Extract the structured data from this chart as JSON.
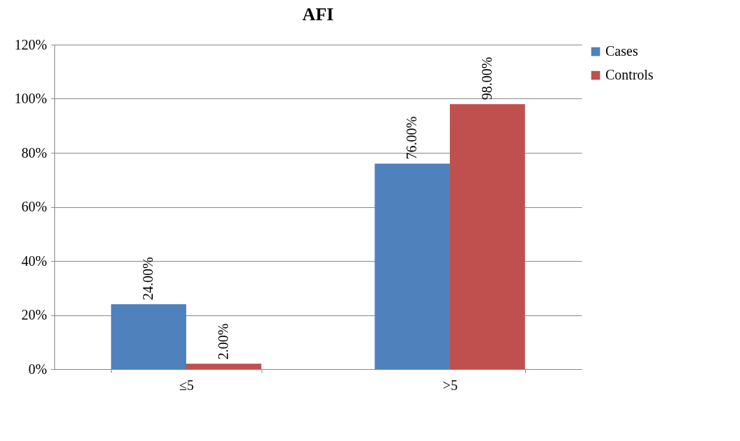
{
  "chart_data": {
    "type": "bar",
    "title": "AFI",
    "categories": [
      "≤5",
      ">5"
    ],
    "series": [
      {
        "name": "Cases",
        "color": "#4f81bd",
        "values": [
          24,
          76
        ],
        "value_labels": [
          "24.00%",
          "76.00%"
        ]
      },
      {
        "name": "Controls",
        "color": "#c0504d",
        "values": [
          2,
          98
        ],
        "value_labels": [
          "2.00%",
          "98.00%"
        ]
      }
    ],
    "ylim": [
      0,
      120
    ],
    "yticks": [
      {
        "value": 0,
        "label": "0%"
      },
      {
        "value": 20,
        "label": "20%"
      },
      {
        "value": 40,
        "label": "40%"
      },
      {
        "value": 60,
        "label": "60%"
      },
      {
        "value": 80,
        "label": "80%"
      },
      {
        "value": 100,
        "label": "100%"
      },
      {
        "value": 120,
        "label": "120%"
      }
    ],
    "grid": "y",
    "legend": "right"
  }
}
